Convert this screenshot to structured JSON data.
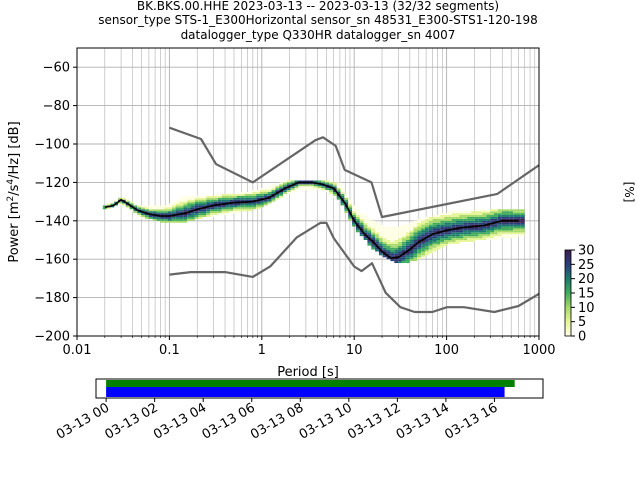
{
  "title_lines": [
    "BK.BKS.00.HHE   2023-03-13 -- 2023-03-13  (32/32 segments)",
    "sensor_type STS-1_E300Horizontal sensor_sn 48531_E300-STS1-120-198",
    "datalogger_type Q330HR datalogger_sn 4007"
  ],
  "chart_data": [
    {
      "type": "heatmap",
      "title": "BK.BKS.00.HHE   2023-03-13 -- 2023-03-13  (32/32 segments)",
      "subtitle": "sensor_type STS-1_E300Horizontal sensor_sn 48531_E300-STS1-120-198 datalogger_type Q330HR datalogger_sn 4007",
      "xlabel": "Period [s]",
      "ylabel": "Power [m²/s⁴/Hz] [dB]",
      "xscale": "log",
      "xlim": [
        0.01,
        1000
      ],
      "ylim": [
        -200,
        -50
      ],
      "xticks": [
        {
          "value": 0.01,
          "label": "0.01"
        },
        {
          "value": 0.1,
          "label": "0.1"
        },
        {
          "value": 1,
          "label": "1"
        },
        {
          "value": 10,
          "label": "10"
        },
        {
          "value": 100,
          "label": "100"
        },
        {
          "value": 1000,
          "label": "1000"
        }
      ],
      "yticks": [
        -200,
        -180,
        -160,
        -140,
        -120,
        -100,
        -80,
        -60
      ],
      "grid": true,
      "colorbar": {
        "label": "[%]",
        "ticks": [
          0,
          5,
          10,
          15,
          20,
          25,
          30
        ],
        "range": [
          0,
          30
        ],
        "colors": [
          "#ffffe5",
          "#e6f598",
          "#a6d96a",
          "#41ab5d",
          "#1d7a6e",
          "#2c3e7a",
          "#3b1f4e"
        ]
      },
      "series": [
        {
          "name": "",
          "role": "high-noise-model",
          "color": "#666666",
          "x": [
            0.1,
            0.22,
            0.32,
            0.8,
            3.8,
            4.6,
            6.3,
            7.9,
            15.4,
            20,
            354.8,
            1000
          ],
          "y": [
            -91.5,
            -97.4,
            -110.5,
            -120,
            -98,
            -96.5,
            -101,
            -113.5,
            -120,
            -138,
            -126,
            -111
          ]
        },
        {
          "name": "",
          "role": "low-noise-model",
          "color": "#666666",
          "x": [
            0.1,
            0.17,
            0.4,
            0.8,
            1.24,
            2.4,
            4.3,
            5,
            6,
            10,
            12,
            15.6,
            21.9,
            31.6,
            45,
            70,
            101,
            154,
            328,
            600,
            1000
          ],
          "y": [
            -168,
            -166.7,
            -166.7,
            -169.2,
            -163.7,
            -148.6,
            -141.1,
            -141.1,
            -149,
            -163.8,
            -166.2,
            -162.1,
            -177.5,
            -185,
            -187.5,
            -187.5,
            -185,
            -185,
            -187.5,
            -184.4,
            -178
          ]
        },
        {
          "name": "",
          "role": "mode",
          "color": "#000000",
          "x": [
            0.02,
            0.025,
            0.03,
            0.035,
            0.045,
            0.06,
            0.08,
            0.1,
            0.15,
            0.2,
            0.3,
            0.5,
            0.8,
            1.2,
            1.8,
            2.5,
            3.5,
            4.5,
            6,
            8,
            10,
            13,
            16,
            20,
            25,
            30,
            40,
            50,
            70,
            100,
            150,
            250,
            400,
            600
          ],
          "y": [
            -133,
            -132,
            -129,
            -131,
            -134.5,
            -136.5,
            -137.5,
            -137.5,
            -136,
            -134,
            -132,
            -130.5,
            -130,
            -128,
            -123,
            -120,
            -120,
            -121,
            -123,
            -131,
            -140,
            -147,
            -151,
            -156,
            -159.5,
            -159,
            -155,
            -151,
            -147,
            -145,
            -143.5,
            -142.5,
            -140,
            -140
          ]
        }
      ],
      "distribution": [
        {
          "x": 0.02,
          "y": [
            -134,
            -132
          ]
        },
        {
          "x": 0.03,
          "y": [
            -131,
            -128
          ]
        },
        {
          "x": 0.05,
          "y": [
            -138,
            -133
          ]
        },
        {
          "x": 0.1,
          "y": [
            -141,
            -132
          ]
        },
        {
          "x": 0.15,
          "y": [
            -140,
            -127
          ]
        },
        {
          "x": 0.3,
          "y": [
            -137,
            -127
          ]
        },
        {
          "x": 0.6,
          "y": [
            -135,
            -126
          ]
        },
        {
          "x": 1,
          "y": [
            -133,
            -124
          ]
        },
        {
          "x": 2,
          "y": [
            -125,
            -119
          ]
        },
        {
          "x": 3,
          "y": [
            -123,
            -119
          ]
        },
        {
          "x": 5,
          "y": [
            -124,
            -119
          ]
        },
        {
          "x": 7,
          "y": [
            -129,
            -121
          ]
        },
        {
          "x": 10,
          "y": [
            -143,
            -133
          ]
        },
        {
          "x": 15,
          "y": [
            -153,
            -140
          ]
        },
        {
          "x": 20,
          "y": [
            -158,
            -143
          ]
        },
        {
          "x": 30,
          "y": [
            -162,
            -144
          ]
        },
        {
          "x": 50,
          "y": [
            -160,
            -140
          ]
        },
        {
          "x": 100,
          "y": [
            -152,
            -136
          ]
        },
        {
          "x": 200,
          "y": [
            -150,
            -135
          ]
        },
        {
          "x": 600,
          "y": [
            -148,
            -134
          ]
        }
      ]
    },
    {
      "type": "bar",
      "orientation": "horizontal",
      "role": "data-coverage",
      "xticks": [
        "03-13 00",
        "03-13 02",
        "03-13 04",
        "03-13 06",
        "03-13 08",
        "03-13 10",
        "03-13 12",
        "03-13 14",
        "03-13 16"
      ],
      "xlim": [
        "2023-03-12 23:35",
        "2023-03-13 18:00"
      ],
      "series": [
        {
          "name": "",
          "color": "#008000",
          "start": "2023-03-13 00:00",
          "end": "2023-03-13 16:50"
        },
        {
          "name": "",
          "color": "#0000ff",
          "start": "2023-03-13 00:00",
          "end": "2023-03-13 16:25"
        }
      ]
    }
  ]
}
